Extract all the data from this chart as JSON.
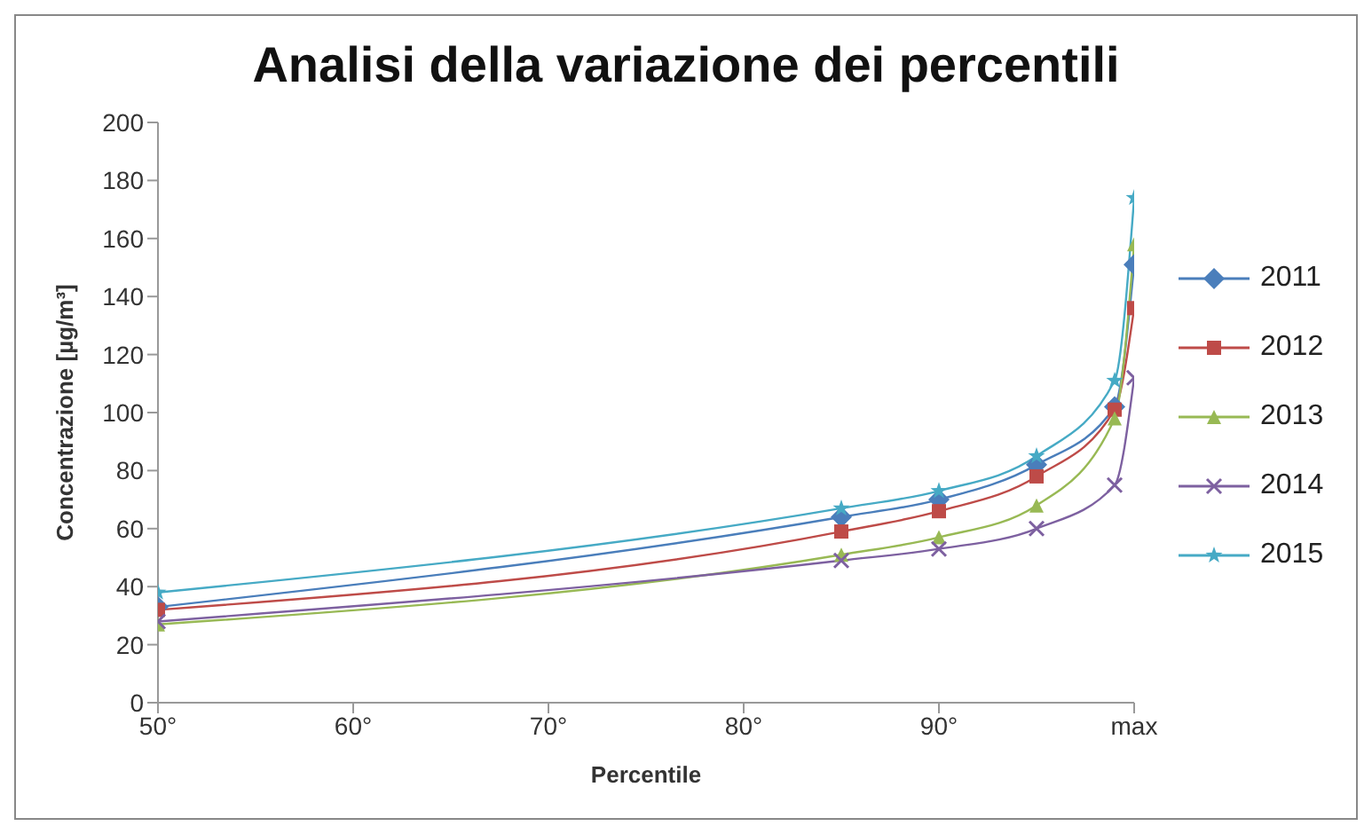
{
  "chart_data": {
    "type": "line",
    "title": "Analisi della variazione dei percentili",
    "xlabel": "Percentile",
    "ylabel": "Concentrazione  [µg/m³]",
    "x": [
      50,
      85,
      90,
      95,
      99,
      100
    ],
    "series": [
      {
        "name": "2011",
        "color": "#4a7ebb",
        "marker": "diamond",
        "values": [
          33,
          64,
          70,
          82,
          102,
          151
        ]
      },
      {
        "name": "2012",
        "color": "#be4b48",
        "marker": "square",
        "values": [
          32,
          59,
          66,
          78,
          101,
          136
        ]
      },
      {
        "name": "2013",
        "color": "#98b954",
        "marker": "triangle",
        "values": [
          27,
          51,
          57,
          68,
          98,
          158
        ]
      },
      {
        "name": "2014",
        "color": "#7d60a0",
        "marker": "cross",
        "values": [
          28,
          49,
          53,
          60,
          75,
          112
        ]
      },
      {
        "name": "2015",
        "color": "#46aac5",
        "marker": "star",
        "values": [
          38,
          67,
          73,
          85,
          111,
          174
        ]
      }
    ],
    "xlim": [
      50,
      100
    ],
    "xticks": [
      {
        "value": 50,
        "label": "50°"
      },
      {
        "value": 60,
        "label": "60°"
      },
      {
        "value": 70,
        "label": "70°"
      },
      {
        "value": 80,
        "label": "80°"
      },
      {
        "value": 90,
        "label": "90°"
      },
      {
        "value": 100,
        "label": "max"
      }
    ],
    "ylim": [
      0,
      200
    ],
    "yticks": [
      0,
      20,
      40,
      60,
      80,
      100,
      120,
      140,
      160,
      180,
      200
    ],
    "grid": false,
    "legend": "right",
    "line_style": "solid"
  }
}
